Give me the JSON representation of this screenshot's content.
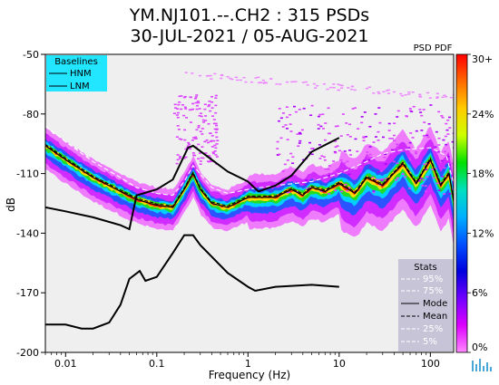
{
  "chart_data": {
    "type": "heatmap",
    "title_lines": [
      "YM.NJ101.--.CH2 : 315 PSDs",
      "30-JUL-2021 / 05-AUG-2021"
    ],
    "xlabel": "Frequency (Hz)",
    "ylabel": "dB",
    "x_scale": "log",
    "xlim": [
      0.006,
      180
    ],
    "ylim": [
      -200,
      -50
    ],
    "x_ticks": [
      {
        "value": 0.01,
        "label": "0.01"
      },
      {
        "value": 0.1,
        "label": "0.1"
      },
      {
        "value": 1,
        "label": "1"
      },
      {
        "value": 10,
        "label": "10"
      },
      {
        "value": 100,
        "label": "100"
      }
    ],
    "y_ticks": [
      {
        "value": -50,
        "label": "-50"
      },
      {
        "value": -80,
        "label": "-80"
      },
      {
        "value": -110,
        "label": "-110"
      },
      {
        "value": -140,
        "label": "-140"
      },
      {
        "value": -170,
        "label": "-170"
      },
      {
        "value": -200,
        "label": "-200"
      }
    ],
    "colorbar": {
      "label": "PSD PDF",
      "ticks": [
        "30+",
        "24%",
        "18%",
        "12%",
        "6%",
        "0%"
      ],
      "colors": [
        "#ff0000",
        "#ff6a00",
        "#ffcc00",
        "#ccff00",
        "#00e000",
        "#00e0c0",
        "#00b0ff",
        "#0050ff",
        "#0000dd",
        "#7000ff",
        "#dd00ff",
        "#ff88ff"
      ]
    },
    "baselines_legend": {
      "title": "Baselines",
      "items": [
        "HNM",
        "LNM"
      ],
      "background": "#22e5ff"
    },
    "stats_legend": {
      "title": "Stats",
      "items": [
        "95%",
        "75%",
        "Mode",
        "Mean",
        "25%",
        "5%"
      ],
      "background": "#c8c4d8"
    },
    "hnm": {
      "x": [
        0.006,
        0.01,
        0.02,
        0.04,
        0.05,
        0.06,
        0.1,
        0.15,
        0.22,
        0.25,
        0.4,
        0.6,
        1.0,
        1.3,
        2.0,
        3.0,
        5.0,
        10.0
      ],
      "y": [
        -127,
        -129,
        -132,
        -136,
        -138,
        -121,
        -118,
        -113,
        -97,
        -96,
        -103,
        -109,
        -114,
        -119,
        -116,
        -111,
        -99,
        -92
      ]
    },
    "lnm": {
      "x": [
        0.006,
        0.01,
        0.015,
        0.02,
        0.03,
        0.04,
        0.05,
        0.065,
        0.075,
        0.1,
        0.15,
        0.2,
        0.25,
        0.3,
        0.6,
        1.0,
        1.2,
        2.0,
        5.0,
        10.0
      ],
      "y": [
        -186,
        -186,
        -188,
        -188,
        -185,
        -176,
        -163,
        -159,
        -164,
        -162,
        -150,
        -141,
        -141,
        -146,
        -160,
        -167,
        -169,
        -167,
        -166,
        -167
      ]
    },
    "mode_curve": {
      "x": [
        0.006,
        0.01,
        0.02,
        0.04,
        0.06,
        0.1,
        0.15,
        0.2,
        0.25,
        0.3,
        0.4,
        0.6,
        1.0,
        2.0,
        3.0,
        4.0,
        5.0,
        7.0,
        10.0,
        15.0,
        20.0,
        30.0,
        50.0,
        70.0,
        100.0,
        130.0,
        160.0,
        180.0
      ],
      "y": [
        -96,
        -103,
        -112,
        -119,
        -123,
        -126,
        -127,
        -118,
        -110,
        -118,
        -125,
        -127,
        -122,
        -122,
        -118,
        -121,
        -117,
        -119,
        -115,
        -120,
        -112,
        -116,
        -105,
        -115,
        -103,
        -116,
        -110,
        -124
      ]
    },
    "p95_curve": {
      "x": [
        0.006,
        0.01,
        0.02,
        0.04,
        0.06,
        0.1,
        0.15,
        0.2,
        0.25,
        0.4,
        0.6,
        1.0,
        2.0,
        5.0,
        10.0,
        20.0,
        30.0,
        50.0,
        100.0,
        150.0,
        180.0
      ],
      "y": [
        -86,
        -94,
        -104,
        -112,
        -117,
        -120,
        -121,
        -114,
        -106,
        -117,
        -120,
        -118,
        -116,
        -114,
        -110,
        -104,
        -100,
        -98,
        -97,
        -101,
        -115
      ]
    }
  }
}
